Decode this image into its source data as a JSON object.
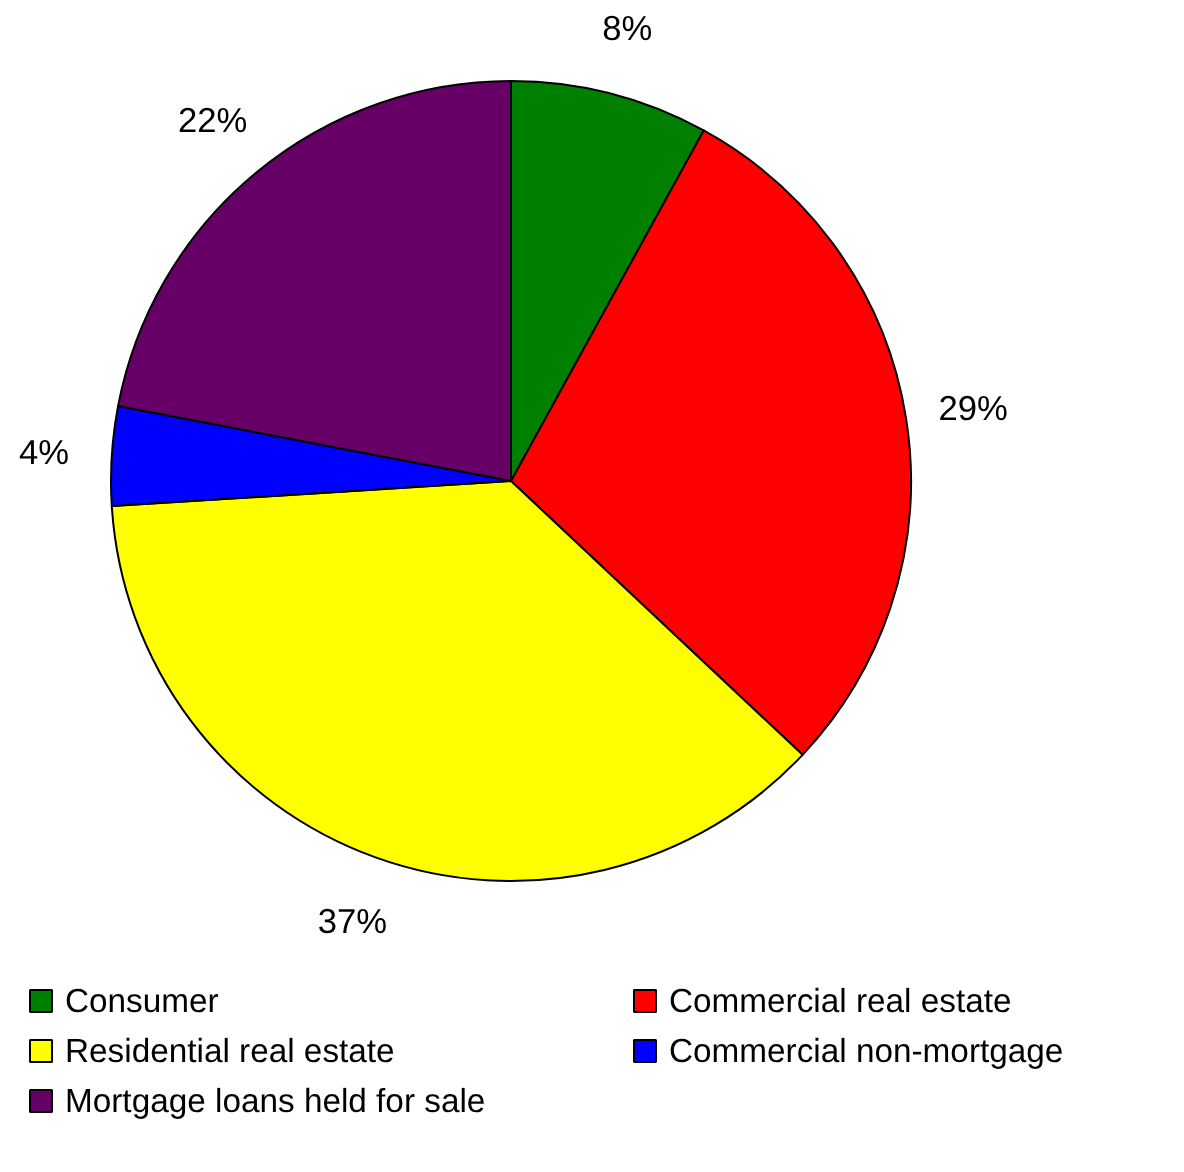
{
  "chart_data": {
    "type": "pie",
    "categories": [
      "Consumer",
      "Commercial real estate",
      "Residential real estate",
      "Commercial non-mortgage",
      "Mortgage loans held for sale"
    ],
    "values": [
      8,
      29,
      37,
      4,
      22
    ],
    "colors": [
      "#008000",
      "#ff0000",
      "#ffff00",
      "#0000ff",
      "#660066"
    ],
    "value_labels": [
      "8%",
      "29%",
      "37%",
      "4%",
      "22%"
    ],
    "legend": "bottom"
  }
}
